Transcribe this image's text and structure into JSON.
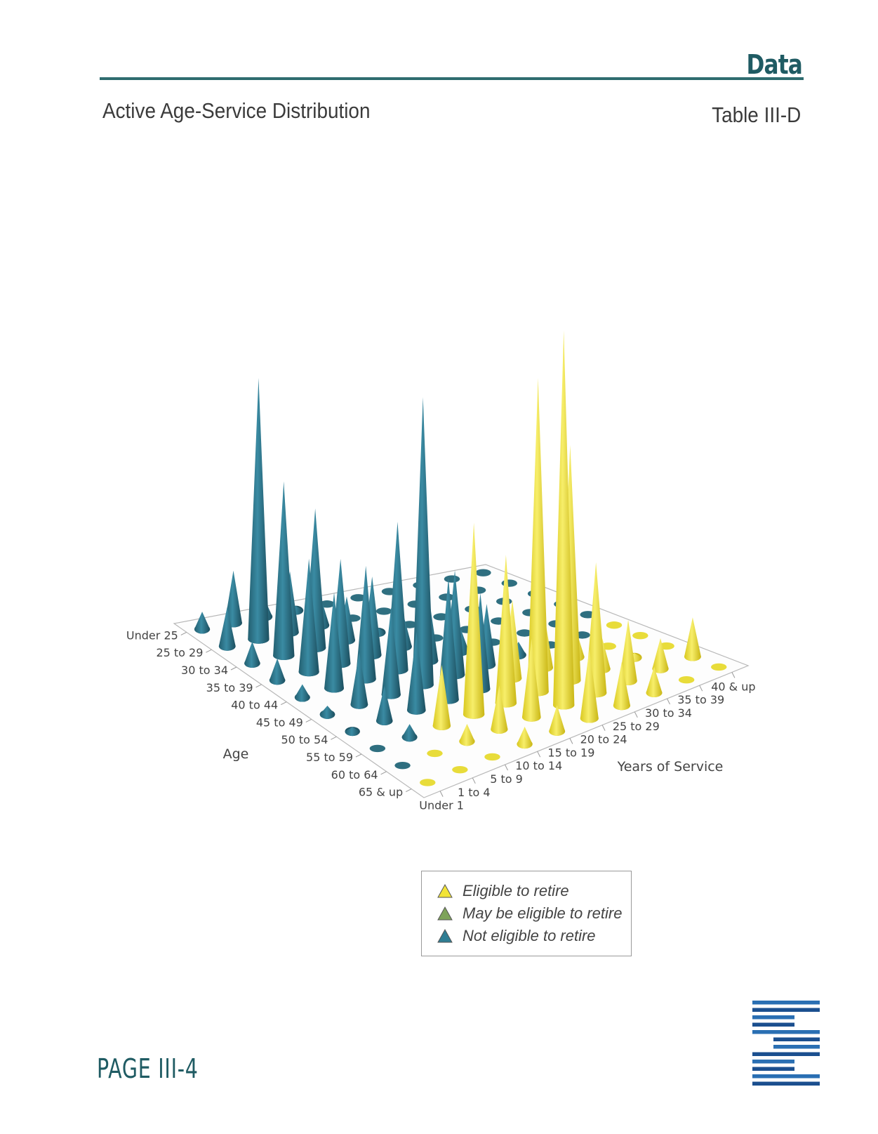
{
  "header": {
    "section": "Data",
    "title": "Active Age-Service Distribution",
    "table_id": "Table III-D"
  },
  "footer": {
    "page": "PAGE III-4"
  },
  "legend": {
    "items": [
      {
        "label": "Eligible to retire",
        "color": "#f2e437"
      },
      {
        "label": "May be eligible to retire",
        "color": "#7ea35a"
      },
      {
        "label": "Not eligible to retire",
        "color": "#2f7d93"
      }
    ]
  },
  "colors": {
    "eligible": "#f2e437",
    "not_eligible": "#2f7d93",
    "accent": "#1f5b63"
  },
  "chart_data": {
    "type": "3d-cone",
    "title": "",
    "x_axis_label": "Age",
    "y_axis_label": "Years of Service",
    "age_groups": [
      "Under 25",
      "25 to 29",
      "30 to 34",
      "35 to 39",
      "40 to 44",
      "45 to 49",
      "50 to 54",
      "55 to 59",
      "60 to 64",
      "65 & up"
    ],
    "service_groups": [
      "Under 1",
      "1 to 4",
      "5 to 9",
      "10 to 14",
      "15 to 19",
      "20 to 24",
      "25 to 29",
      "30 to 34",
      "35 to 39",
      "40 & up"
    ],
    "status_legend": {
      "E": "Eligible to retire",
      "N": "Not eligible to retire"
    },
    "status": [
      [
        "N",
        "N",
        "N",
        "N",
        "N",
        "N",
        "N",
        "N",
        "N",
        "N"
      ],
      [
        "N",
        "N",
        "N",
        "N",
        "N",
        "N",
        "N",
        "N",
        "N",
        "N"
      ],
      [
        "N",
        "N",
        "N",
        "N",
        "N",
        "N",
        "N",
        "N",
        "N",
        "N"
      ],
      [
        "N",
        "N",
        "N",
        "N",
        "N",
        "N",
        "N",
        "N",
        "N",
        "N"
      ],
      [
        "N",
        "N",
        "N",
        "N",
        "N",
        "N",
        "N",
        "N",
        "N",
        "N"
      ],
      [
        "N",
        "N",
        "N",
        "N",
        "N",
        "N",
        "N",
        "N",
        "N",
        "E"
      ],
      [
        "N",
        "N",
        "N",
        "N",
        "N",
        "E",
        "E",
        "E",
        "E",
        "E"
      ],
      [
        "N",
        "N",
        "E",
        "E",
        "E",
        "E",
        "E",
        "E",
        "E",
        "E"
      ],
      [
        "N",
        "E",
        "E",
        "E",
        "E",
        "E",
        "E",
        "E",
        "E",
        "E"
      ],
      [
        "E",
        "E",
        "E",
        "E",
        "E",
        "E",
        "E",
        "E",
        "E",
        "E"
      ]
    ],
    "counts": [
      [
        4,
        12,
        4,
        1,
        0,
        0,
        0,
        0,
        0,
        0
      ],
      [
        9,
        60,
        14,
        6,
        0,
        0,
        0,
        0,
        0,
        0
      ],
      [
        5,
        40,
        32,
        10,
        1,
        0,
        0,
        0,
        0,
        0
      ],
      [
        5,
        26,
        24,
        18,
        7,
        0,
        0,
        0,
        0,
        0
      ],
      [
        3,
        22,
        26,
        34,
        14,
        5,
        0,
        0,
        0,
        0
      ],
      [
        2,
        12,
        20,
        66,
        24,
        14,
        3,
        0,
        0,
        0
      ],
      [
        1,
        8,
        18,
        28,
        22,
        18,
        12,
        6,
        0,
        0
      ],
      [
        0,
        3,
        14,
        44,
        34,
        72,
        54,
        7,
        1,
        0
      ],
      [
        0,
        0,
        4,
        10,
        18,
        86,
        30,
        14,
        7,
        9
      ],
      [
        0,
        0,
        0,
        4,
        6,
        16,
        10,
        6,
        0,
        0
      ]
    ]
  }
}
